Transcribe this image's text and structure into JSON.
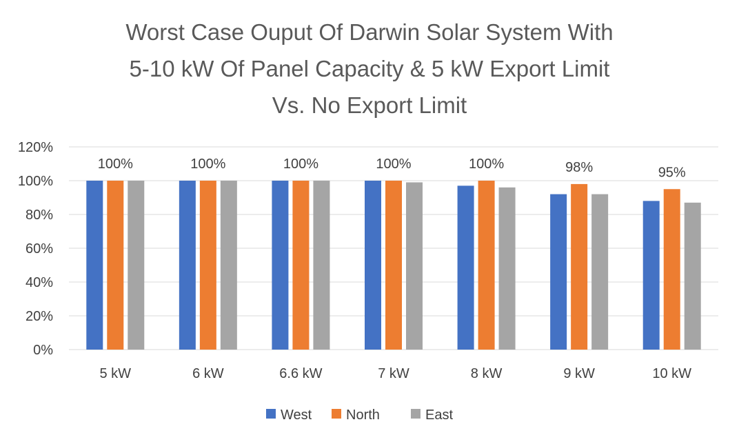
{
  "chart_data": {
    "type": "bar",
    "title": [
      "Worst Case Ouput Of Darwin Solar System With",
      "5-10 kW Of Panel Capacity & 5 kW Export Limit",
      "Vs. No Export Limit"
    ],
    "xlabel": "",
    "ylabel": "",
    "categories": [
      "5 kW",
      "6 kW",
      "6.6 kW",
      "7 kW",
      "8 kW",
      "9 kW",
      "10 kW"
    ],
    "series": [
      {
        "name": "West",
        "color": "#4472c4",
        "values": [
          100,
          100,
          100,
          100,
          97,
          92,
          88
        ]
      },
      {
        "name": "North",
        "color": "#ed7d31",
        "values": [
          100,
          100,
          100,
          100,
          100,
          98,
          95
        ]
      },
      {
        "name": "East",
        "color": "#a5a5a5",
        "values": [
          100,
          100,
          100,
          99,
          96,
          92,
          87
        ]
      }
    ],
    "data_labels": {
      "series": "North",
      "labels": [
        "100%",
        "100%",
        "100%",
        "100%",
        "100%",
        "98%",
        "95%"
      ]
    },
    "ylim": [
      0,
      120
    ],
    "yticks": [
      0,
      20,
      40,
      60,
      80,
      100,
      120
    ],
    "ytick_labels": [
      "0%",
      "20%",
      "40%",
      "60%",
      "80%",
      "100%",
      "120%"
    ],
    "grid": true,
    "legend": "bottom-center"
  }
}
